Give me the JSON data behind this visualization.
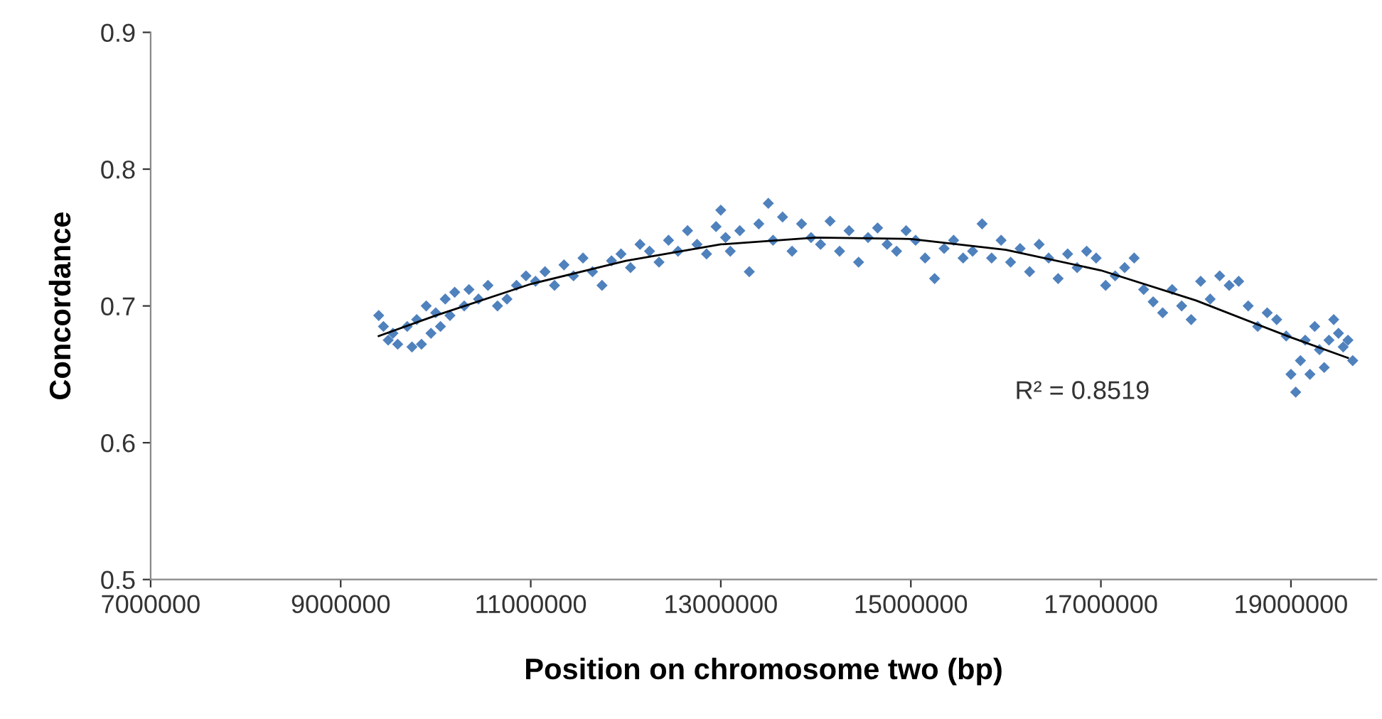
{
  "chart_data": {
    "type": "scatter",
    "xlabel": "Position on chromosome two (bp)",
    "ylabel": "Concordance",
    "xlim": [
      7000000,
      19900000
    ],
    "xticks": [
      7000000,
      9000000,
      11000000,
      13000000,
      15000000,
      17000000,
      19000000
    ],
    "ylim": [
      0.5,
      0.9
    ],
    "yticks": [
      0.5,
      0.6,
      0.7,
      0.8,
      0.9
    ],
    "grid": false,
    "legend": false,
    "annotations": [
      "R² = 0.8519"
    ],
    "series": [
      {
        "color": "#4f81bd",
        "marker": "diamond",
        "x": [
          9400000,
          9450000,
          9500000,
          9550000,
          9600000,
          9700000,
          9750000,
          9800000,
          9850000,
          9900000,
          9950000,
          10000000,
          10050000,
          10100000,
          10150000,
          10200000,
          10300000,
          10350000,
          10450000,
          10550000,
          10650000,
          10750000,
          10850000,
          10950000,
          11050000,
          11150000,
          11250000,
          11350000,
          11450000,
          11550000,
          11650000,
          11750000,
          11850000,
          11950000,
          12050000,
          12150000,
          12250000,
          12350000,
          12450000,
          12550000,
          12650000,
          12750000,
          12850000,
          12950000,
          13000000,
          13050000,
          13100000,
          13200000,
          13300000,
          13400000,
          13500000,
          13550000,
          13650000,
          13750000,
          13850000,
          13950000,
          14050000,
          14150000,
          14250000,
          14350000,
          14450000,
          14550000,
          14650000,
          14750000,
          14850000,
          14950000,
          15050000,
          15150000,
          15250000,
          15350000,
          15450000,
          15550000,
          15650000,
          15750000,
          15850000,
          15950000,
          16050000,
          16150000,
          16250000,
          16350000,
          16450000,
          16550000,
          16650000,
          16750000,
          16850000,
          16950000,
          17050000,
          17150000,
          17250000,
          17350000,
          17450000,
          17550000,
          17650000,
          17750000,
          17850000,
          17950000,
          18050000,
          18150000,
          18250000,
          18350000,
          18450000,
          18550000,
          18650000,
          18750000,
          18850000,
          18950000,
          19000000,
          19050000,
          19100000,
          19150000,
          19200000,
          19250000,
          19300000,
          19350000,
          19400000,
          19450000,
          19500000,
          19550000,
          19600000,
          19650000
        ],
        "values": [
          0.693,
          0.685,
          0.675,
          0.68,
          0.672,
          0.685,
          0.67,
          0.69,
          0.672,
          0.7,
          0.68,
          0.695,
          0.685,
          0.705,
          0.693,
          0.71,
          0.7,
          0.712,
          0.705,
          0.715,
          0.7,
          0.705,
          0.715,
          0.722,
          0.718,
          0.725,
          0.715,
          0.73,
          0.722,
          0.735,
          0.725,
          0.715,
          0.733,
          0.738,
          0.728,
          0.745,
          0.74,
          0.732,
          0.748,
          0.74,
          0.755,
          0.745,
          0.738,
          0.758,
          0.77,
          0.75,
          0.74,
          0.755,
          0.725,
          0.76,
          0.775,
          0.748,
          0.765,
          0.74,
          0.76,
          0.75,
          0.745,
          0.762,
          0.74,
          0.755,
          0.732,
          0.75,
          0.757,
          0.745,
          0.74,
          0.755,
          0.748,
          0.735,
          0.72,
          0.742,
          0.748,
          0.735,
          0.74,
          0.76,
          0.735,
          0.748,
          0.732,
          0.742,
          0.725,
          0.745,
          0.735,
          0.72,
          0.738,
          0.728,
          0.74,
          0.735,
          0.715,
          0.722,
          0.728,
          0.735,
          0.712,
          0.703,
          0.695,
          0.712,
          0.7,
          0.69,
          0.718,
          0.705,
          0.722,
          0.715,
          0.718,
          0.7,
          0.685,
          0.695,
          0.69,
          0.678,
          0.65,
          0.637,
          0.66,
          0.675,
          0.65,
          0.685,
          0.668,
          0.655,
          0.675,
          0.69,
          0.68,
          0.67,
          0.675,
          0.66
        ]
      },
      {
        "type": "line",
        "marker": "none",
        "color": "#000000",
        "x": [
          9400000,
          10000000,
          11000000,
          12000000,
          13000000,
          14000000,
          15000000,
          16000000,
          17000000,
          18000000,
          19000000,
          19600000
        ],
        "values": [
          0.678,
          0.693,
          0.716,
          0.733,
          0.745,
          0.75,
          0.749,
          0.741,
          0.726,
          0.704,
          0.677,
          0.662
        ]
      }
    ]
  }
}
